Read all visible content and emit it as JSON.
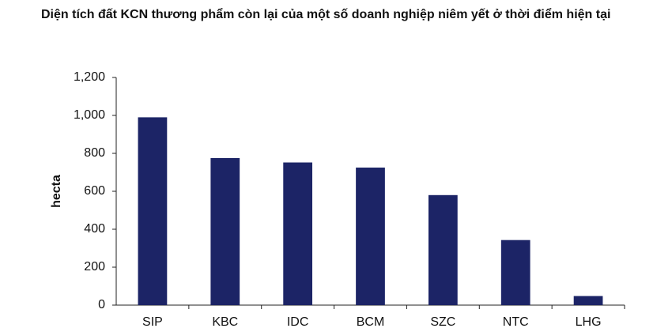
{
  "chart_data": {
    "type": "bar",
    "title": "Diện tích đất KCN thương phẩm còn lại của một số doanh nghiệp niêm yết ở thời điểm hiện tại",
    "y_label": "hecta",
    "categories": [
      "SIP",
      "KBC",
      "IDC",
      "BCM",
      "SZC",
      "NTC",
      "LHG"
    ],
    "values": [
      990,
      775,
      752,
      725,
      580,
      343,
      48
    ],
    "color": "#1c2466",
    "ylim": [
      0,
      1200
    ],
    "yticks": [
      0,
      200,
      400,
      600,
      800,
      {
        "value": 1000,
        "label": "1,000"
      },
      {
        "value": 1200,
        "label": "1,200"
      }
    ],
    "grid": false
  }
}
